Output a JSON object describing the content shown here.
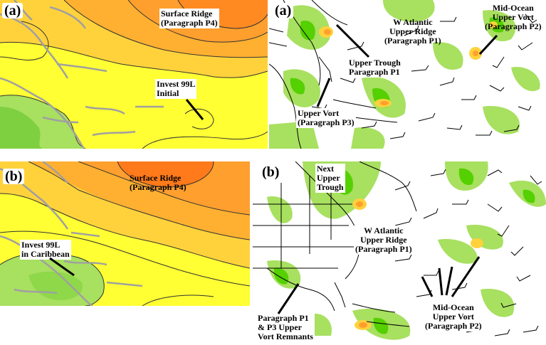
{
  "panels": {
    "top_left": {
      "letter": "(a)",
      "labels": {
        "surface_ridge": [
          "Surface Ridge",
          "(Paragraph P4)"
        ],
        "invest": [
          "Invest 99L",
          "Initial"
        ]
      }
    },
    "top_right": {
      "letter": "(a)",
      "labels": {
        "w_atlantic": [
          "W Atlantic",
          "Upper Ridge",
          "(Paragraph P1)"
        ],
        "mid_ocean": [
          "Mid-Ocean",
          "Upper Vort",
          "(Paragraph P2)"
        ],
        "upper_trough": [
          "Upper Trough",
          "Paragraph P1"
        ],
        "upper_vort": [
          "Upper Vort",
          "(Paragraph P3)"
        ]
      }
    },
    "bottom_left": {
      "letter": "(b)",
      "labels": {
        "surface_ridge": [
          "Surface Ridge",
          "(Paragraph P4)"
        ],
        "invest": [
          "Invest 99L",
          "in Caribbean"
        ]
      }
    },
    "bottom_right": {
      "letter": "(b)",
      "labels": {
        "next_trough": [
          "Next",
          "Upper",
          "Trough"
        ],
        "w_atlantic": [
          "W Atlantic",
          "Upper Ridge",
          "(Paragraph P1)"
        ],
        "mid_ocean": [
          "Mid-Ocean",
          "Upper Vort",
          "(Paragraph P2)"
        ],
        "remnants": [
          "Paragraph P1",
          "& P3 Upper",
          "Vort Remnants"
        ]
      }
    }
  },
  "colors": {
    "yellow": "#ffff33",
    "light_orange": "#ffd23c",
    "orange": "#ff9f2e",
    "dark_orange": "#ff7a1a",
    "green": "#a8e060",
    "bright_green": "#55d000",
    "land_gray": "#a0a0a0"
  }
}
